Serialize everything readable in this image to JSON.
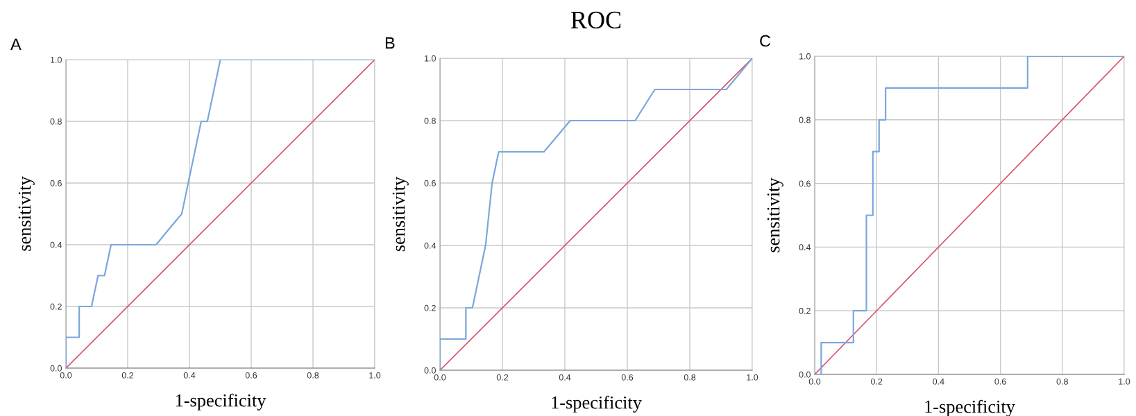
{
  "chart_data": [
    {
      "type": "line",
      "annotations": [
        "A"
      ],
      "xlabel": "1-specificity",
      "ylabel": "sensitivity",
      "xlim": [
        0,
        1
      ],
      "ylim": [
        0,
        1
      ],
      "xticks": [
        {
          "value": 0,
          "label": "0.0"
        },
        {
          "value": 0.2,
          "label": "0.2"
        },
        {
          "value": 0.4,
          "label": "0.4"
        },
        {
          "value": 0.6,
          "label": "0.6"
        },
        {
          "value": 0.8,
          "label": "0.8"
        },
        {
          "value": 1,
          "label": "1.0"
        }
      ],
      "yticks": [
        {
          "value": 0,
          "label": "0.0"
        },
        {
          "value": 0.2,
          "label": "0.2"
        },
        {
          "value": 0.4,
          "label": "0.4"
        },
        {
          "value": 0.6,
          "label": "0.6"
        },
        {
          "value": 0.8,
          "label": "0.8"
        },
        {
          "value": 1,
          "label": "1.0"
        }
      ],
      "grid": true,
      "marker": "none",
      "line_style": "solid",
      "series": [
        {
          "color": "#7ba7dd",
          "x": [
            0,
            0,
            0.043,
            0.043,
            0.083,
            0.104,
            0.125,
            0.146,
            0.292,
            0.333,
            0.375,
            0.396,
            0.438,
            0.458,
            0.5,
            1
          ],
          "values": [
            0,
            0.1,
            0.1,
            0.2,
            0.2,
            0.3,
            0.3,
            0.4,
            0.4,
            0.45,
            0.5,
            0.6,
            0.8,
            0.8,
            1,
            1
          ]
        },
        {
          "color": "#d95670",
          "x": [
            0,
            1
          ],
          "values": [
            0,
            1
          ]
        }
      ]
    },
    {
      "type": "line",
      "title": "ROC",
      "annotations": [
        "B"
      ],
      "xlabel": "1-specificity",
      "ylabel": "sensitivity",
      "xlim": [
        0,
        1
      ],
      "ylim": [
        0,
        1
      ],
      "xticks": [
        {
          "value": 0,
          "label": "0.0"
        },
        {
          "value": 0.2,
          "label": "0.2"
        },
        {
          "value": 0.4,
          "label": "0.4"
        },
        {
          "value": 0.6,
          "label": "0.6"
        },
        {
          "value": 0.8,
          "label": "0.8"
        },
        {
          "value": 1,
          "label": "1.0"
        }
      ],
      "yticks": [
        {
          "value": 0,
          "label": "0.0"
        },
        {
          "value": 0.2,
          "label": "0.2"
        },
        {
          "value": 0.4,
          "label": "0.4"
        },
        {
          "value": 0.6,
          "label": "0.6"
        },
        {
          "value": 0.8,
          "label": "0.8"
        },
        {
          "value": 1,
          "label": "1.0"
        }
      ],
      "grid": true,
      "marker": "none",
      "line_style": "solid",
      "series": [
        {
          "color": "#7ba7dd",
          "x": [
            0,
            0,
            0.083,
            0.083,
            0.104,
            0.146,
            0.167,
            0.188,
            0.333,
            0.417,
            0.625,
            0.688,
            0.917,
            1
          ],
          "values": [
            0,
            0.1,
            0.1,
            0.2,
            0.2,
            0.4,
            0.6,
            0.7,
            0.7,
            0.8,
            0.8,
            0.9,
            0.9,
            1
          ]
        },
        {
          "color": "#d95670",
          "x": [
            0,
            1
          ],
          "values": [
            0,
            1
          ]
        }
      ]
    },
    {
      "type": "line",
      "annotations": [
        "C"
      ],
      "xlabel": "1-specificity",
      "ylabel": "sensitivity",
      "xlim": [
        0,
        1
      ],
      "ylim": [
        0,
        1
      ],
      "xticks": [
        {
          "value": 0,
          "label": "0.0"
        },
        {
          "value": 0.2,
          "label": "0.2"
        },
        {
          "value": 0.4,
          "label": "0.4"
        },
        {
          "value": 0.6,
          "label": "0.6"
        },
        {
          "value": 0.8,
          "label": "0.8"
        },
        {
          "value": 1,
          "label": "1.0"
        }
      ],
      "yticks": [
        {
          "value": 0,
          "label": "0.0"
        },
        {
          "value": 0.2,
          "label": "0.2"
        },
        {
          "value": 0.4,
          "label": "0.4"
        },
        {
          "value": 0.6,
          "label": "0.6"
        },
        {
          "value": 0.8,
          "label": "0.8"
        },
        {
          "value": 1,
          "label": "1.0"
        }
      ],
      "grid": true,
      "marker": "none",
      "line_style": "solid",
      "series": [
        {
          "color": "#7ba7dd",
          "x": [
            0,
            0.021,
            0.021,
            0.125,
            0.125,
            0.167,
            0.167,
            0.188,
            0.188,
            0.208,
            0.208,
            0.229,
            0.229,
            0.688,
            0.688,
            1
          ],
          "values": [
            0,
            0,
            0.1,
            0.1,
            0.2,
            0.2,
            0.5,
            0.5,
            0.7,
            0.7,
            0.8,
            0.8,
            0.9,
            0.9,
            1,
            1
          ]
        },
        {
          "color": "#d95670",
          "x": [
            0,
            1
          ],
          "values": [
            0,
            1
          ]
        }
      ]
    }
  ]
}
